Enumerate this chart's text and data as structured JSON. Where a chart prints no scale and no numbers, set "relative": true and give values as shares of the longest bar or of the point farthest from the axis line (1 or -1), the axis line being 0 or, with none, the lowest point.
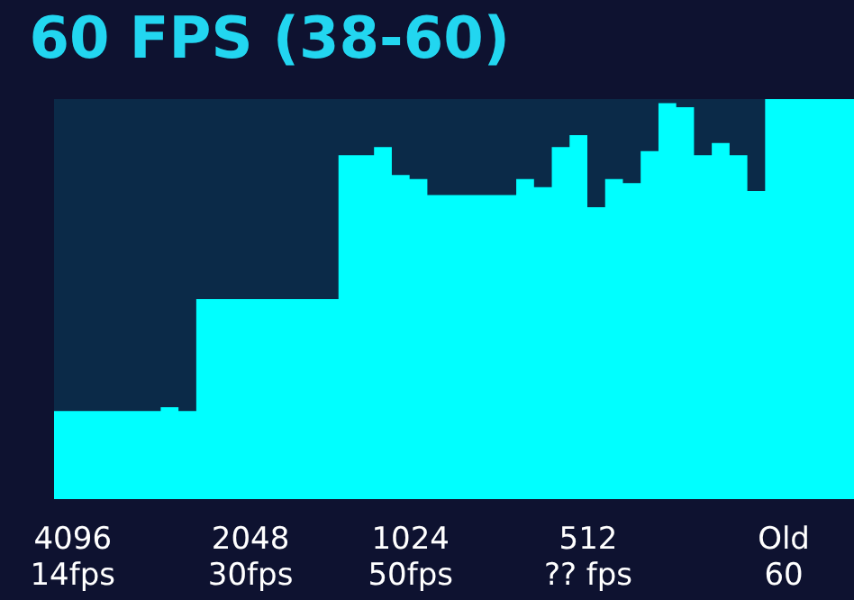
{
  "chart_data": {
    "type": "area",
    "title": "60 FPS (38-60)",
    "relative": true,
    "grid": false,
    "color": "#00ffff",
    "categories": [
      null,
      "4096\n14fps",
      null,
      null,
      null,
      null,
      null,
      null,
      null,
      null,
      null,
      "2048\n30fps",
      null,
      null,
      null,
      null,
      null,
      null,
      null,
      null,
      "1024\n50fps",
      null,
      null,
      null,
      null,
      null,
      null,
      null,
      null,
      null,
      "512\n?? fps",
      null,
      null,
      null,
      null,
      null,
      null,
      null,
      null,
      null,
      null,
      "Old\n60",
      null,
      null,
      null,
      null
    ],
    "values": [
      0.22,
      0.22,
      0.22,
      0.22,
      0.22,
      0.22,
      0.23,
      0.22,
      0.5,
      0.5,
      0.5,
      0.5,
      0.5,
      0.5,
      0.5,
      0.5,
      0.86,
      0.86,
      0.88,
      0.81,
      0.8,
      0.76,
      0.76,
      0.76,
      0.76,
      0.76,
      0.8,
      0.78,
      0.88,
      0.91,
      0.73,
      0.8,
      0.79,
      0.87,
      0.99,
      0.98,
      0.86,
      0.89,
      0.86,
      0.77,
      1,
      1,
      1,
      1,
      1,
      1
    ]
  }
}
